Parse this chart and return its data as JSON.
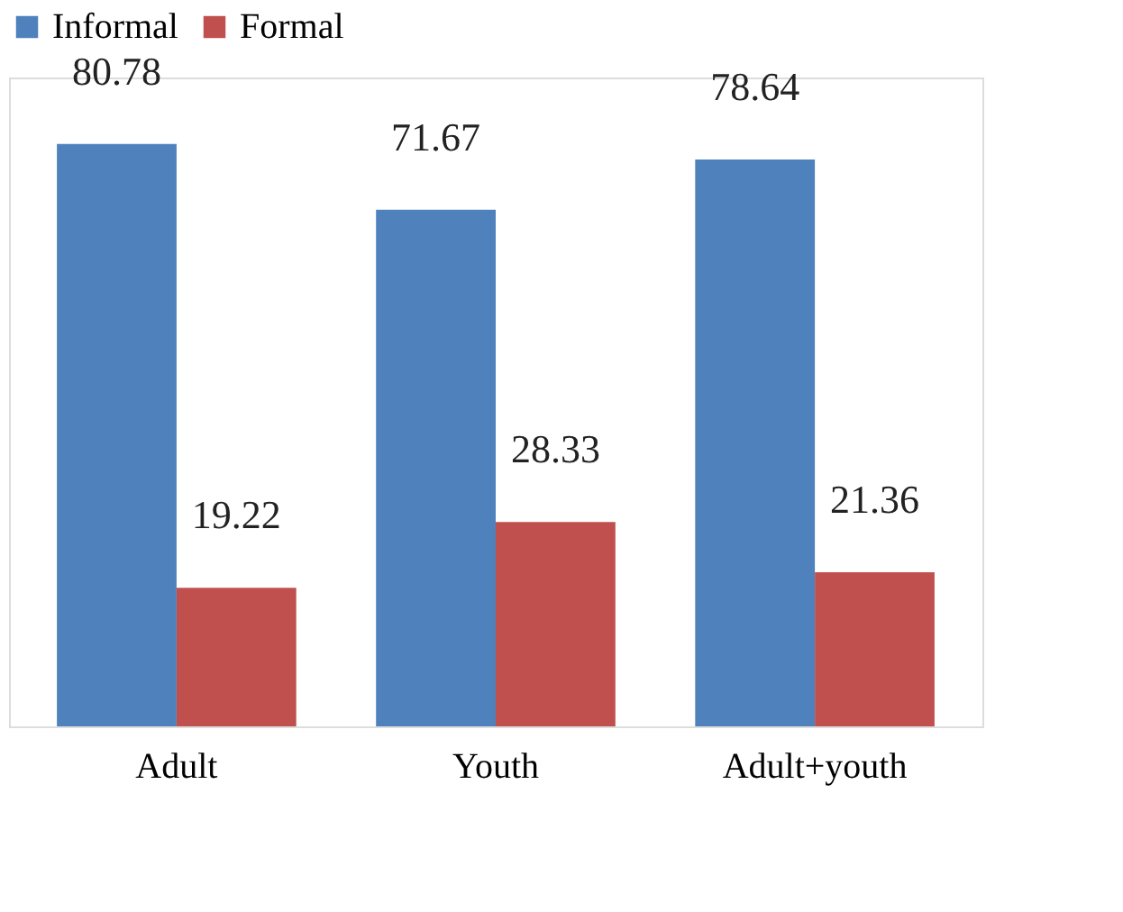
{
  "chart_data": {
    "type": "bar",
    "categories": [
      "Adult",
      "Youth",
      "Adult+youth"
    ],
    "series": [
      {
        "name": "Informal",
        "color": "#4f81bd",
        "values": [
          80.78,
          71.67,
          78.64
        ]
      },
      {
        "name": "Formal",
        "color": "#c0504d",
        "values": [
          19.22,
          28.33,
          21.36
        ]
      }
    ],
    "data_labels": true,
    "legend": "top",
    "grid": false
  }
}
